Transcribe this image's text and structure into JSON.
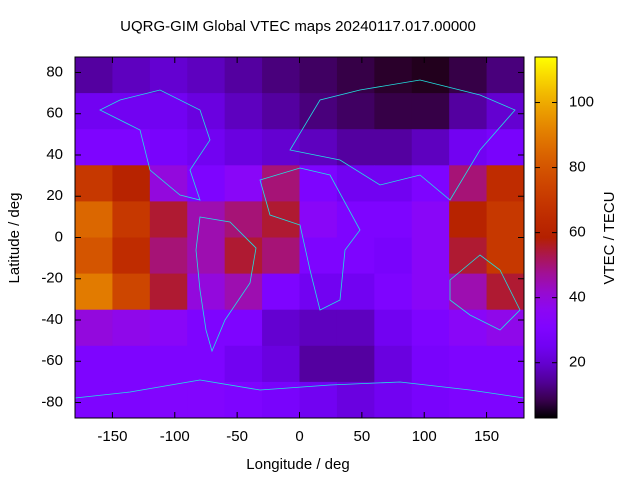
{
  "chart_data": {
    "type": "heatmap",
    "title": "UQRG-GIM Global VTEC maps 20240117.017.00000",
    "x_label": "Longitude / deg",
    "y_label": "Latitude / deg",
    "colorbar_label": "VTEC / TECU",
    "x_bins": [
      -180,
      -150,
      -120,
      -90,
      -60,
      -30,
      0,
      30,
      60,
      90,
      120,
      150,
      180
    ],
    "y_bins": [
      87.5,
      70,
      52.5,
      35,
      17.5,
      0,
      -17.5,
      -35,
      -52.5,
      -70,
      -87.5
    ],
    "values": [
      [
        15,
        18,
        20,
        18,
        15,
        12,
        10,
        8,
        6,
        5,
        8,
        12
      ],
      [
        25,
        25,
        25,
        22,
        18,
        15,
        12,
        10,
        8,
        8,
        15,
        20
      ],
      [
        30,
        30,
        28,
        25,
        22,
        20,
        18,
        15,
        15,
        18,
        25,
        28
      ],
      [
        70,
        60,
        40,
        30,
        35,
        50,
        30,
        25,
        25,
        30,
        50,
        65
      ],
      [
        85,
        70,
        55,
        45,
        50,
        55,
        35,
        30,
        30,
        35,
        60,
        70
      ],
      [
        80,
        65,
        50,
        45,
        55,
        50,
        30,
        30,
        28,
        35,
        55,
        70
      ],
      [
        90,
        75,
        55,
        40,
        45,
        30,
        25,
        25,
        30,
        35,
        45,
        55
      ],
      [
        40,
        38,
        35,
        30,
        30,
        20,
        18,
        18,
        25,
        30,
        35,
        38
      ],
      [
        30,
        30,
        30,
        30,
        25,
        22,
        15,
        15,
        22,
        28,
        30,
        30
      ],
      [
        30,
        30,
        32,
        32,
        30,
        28,
        25,
        22,
        25,
        28,
        30,
        30
      ]
    ],
    "xlim": [
      -180,
      180
    ],
    "ylim": [
      -87.5,
      87.5
    ],
    "zlim": [
      3,
      114
    ],
    "xticks": [
      -150,
      -100,
      -50,
      0,
      50,
      100,
      150
    ],
    "yticks": [
      -80,
      -60,
      -40,
      -20,
      0,
      20,
      40,
      60,
      80
    ],
    "zticks": [
      20,
      40,
      60,
      80,
      100
    ],
    "palette": "rgbformulae 7,5,15"
  }
}
